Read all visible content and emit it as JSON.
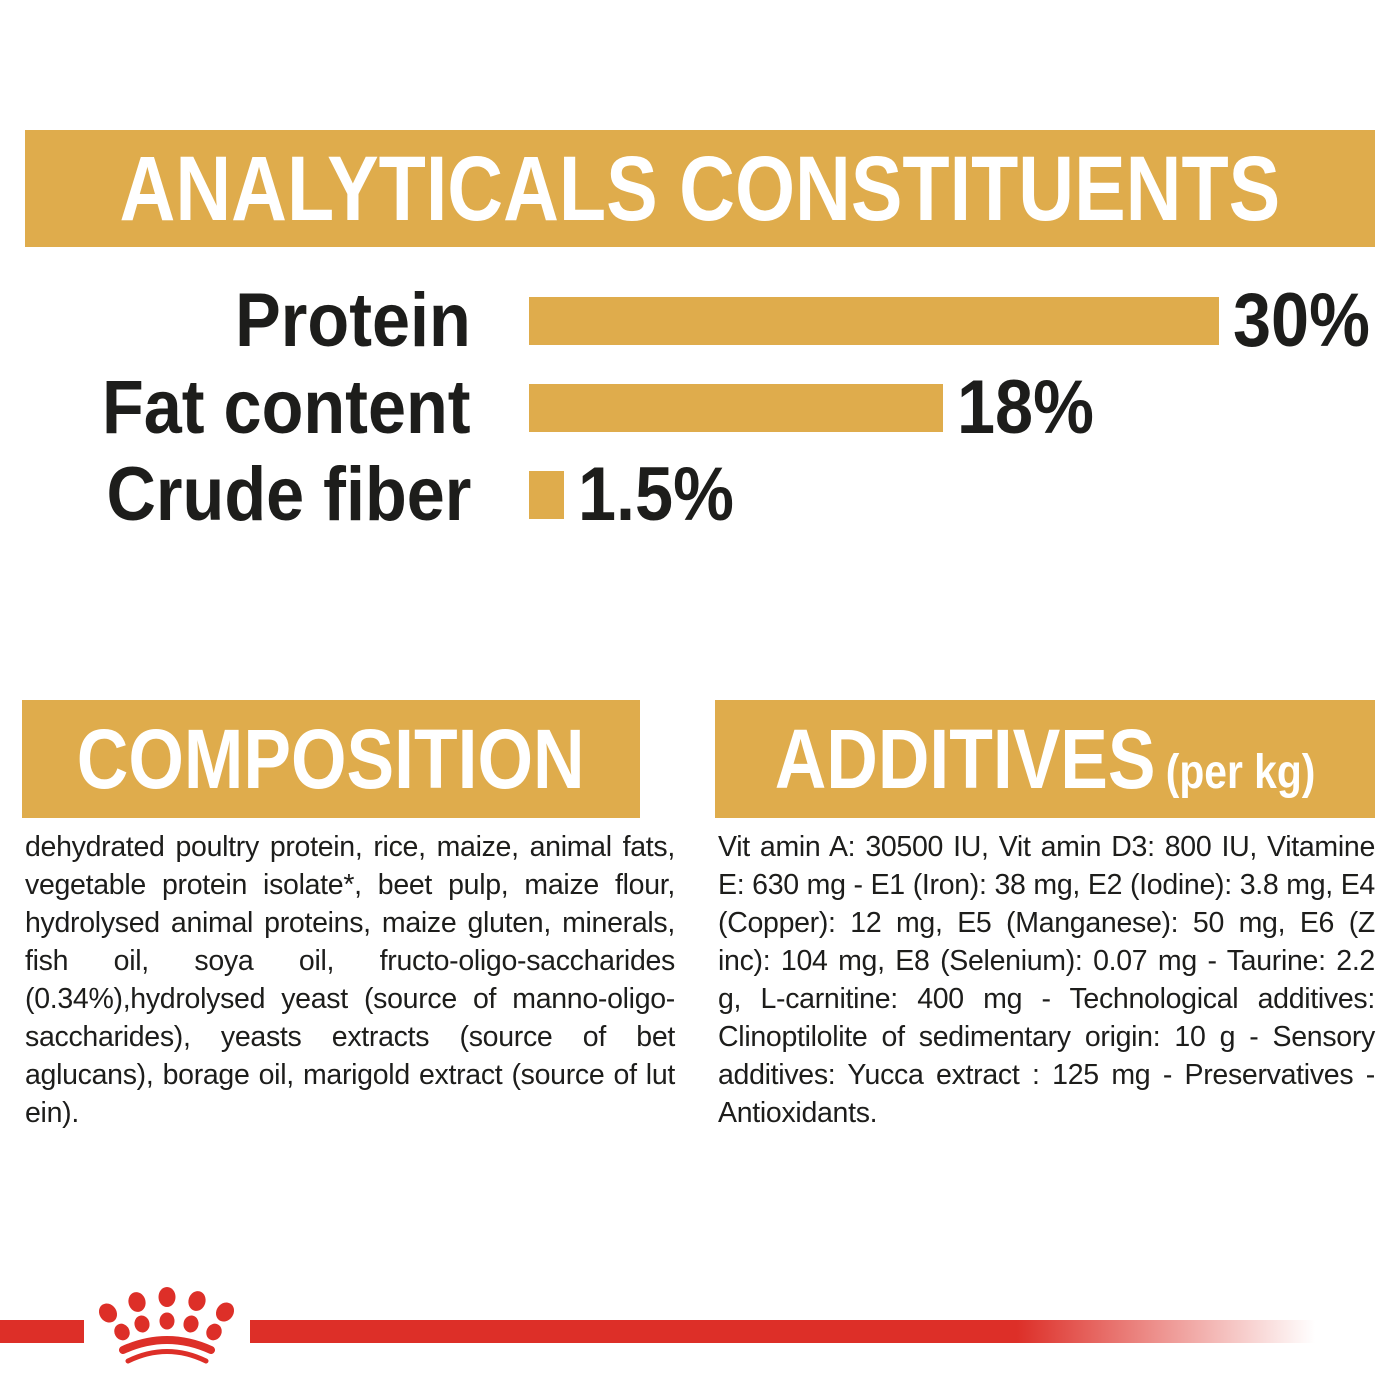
{
  "page": {
    "background": "#ffffff",
    "accent_gold": "#DFAC4C",
    "brand_red": "#DD2F28",
    "text_color": "#1D1D1B"
  },
  "analyticals": {
    "title": "ANALYTICALS CONSTITUENTS",
    "chart_data": {
      "type": "bar",
      "orientation": "horizontal",
      "categories": [
        "Protein",
        "Fat content",
        "Crude fiber"
      ],
      "values": [
        30,
        18,
        1.5
      ],
      "value_labels": [
        "30%",
        "18%",
        "1.5%"
      ],
      "bar_color": "#DFAC4C",
      "xlim": [
        0,
        30
      ],
      "grid": false,
      "legend": false
    }
  },
  "composition": {
    "title": "COMPOSITION",
    "body": "dehydrated poultry protein, rice, maize, animal fats, vegetable protein isolate*, beet pulp, maize flour, hydrolysed animal proteins, maize gluten, minerals, fish oil, soya oil, fructo-oligo-saccharides (0.34%),hydrolysed yeast (source of manno-oligo-saccharides), yeasts extracts (source of bet aglucans), borage oil, marigold extract (source of lut ein)."
  },
  "additives": {
    "title": "ADDITIVES",
    "title_suffix": "(per kg)",
    "body": "Vit amin A: 30500 IU, Vit amin D3: 800 IU, Vitamine E: 630 mg - E1 (Iron): 38 mg, E2 (Iodine): 3.8 mg, E4 (Copper): 12 mg, E5 (Manganese): 50 mg, E6 (Z inc): 104 mg, E8 (Selenium): 0.07 mg - Taurine: 2.2 g, L-carnitine: 400 mg - Technological additives: Clinoptilolite of sedimentary origin: 10 g - Sensory additives: Yucca extract : 125 mg - Preservatives -Antioxidants."
  },
  "footer": {
    "logo": "royal-canin-crown-paw"
  }
}
